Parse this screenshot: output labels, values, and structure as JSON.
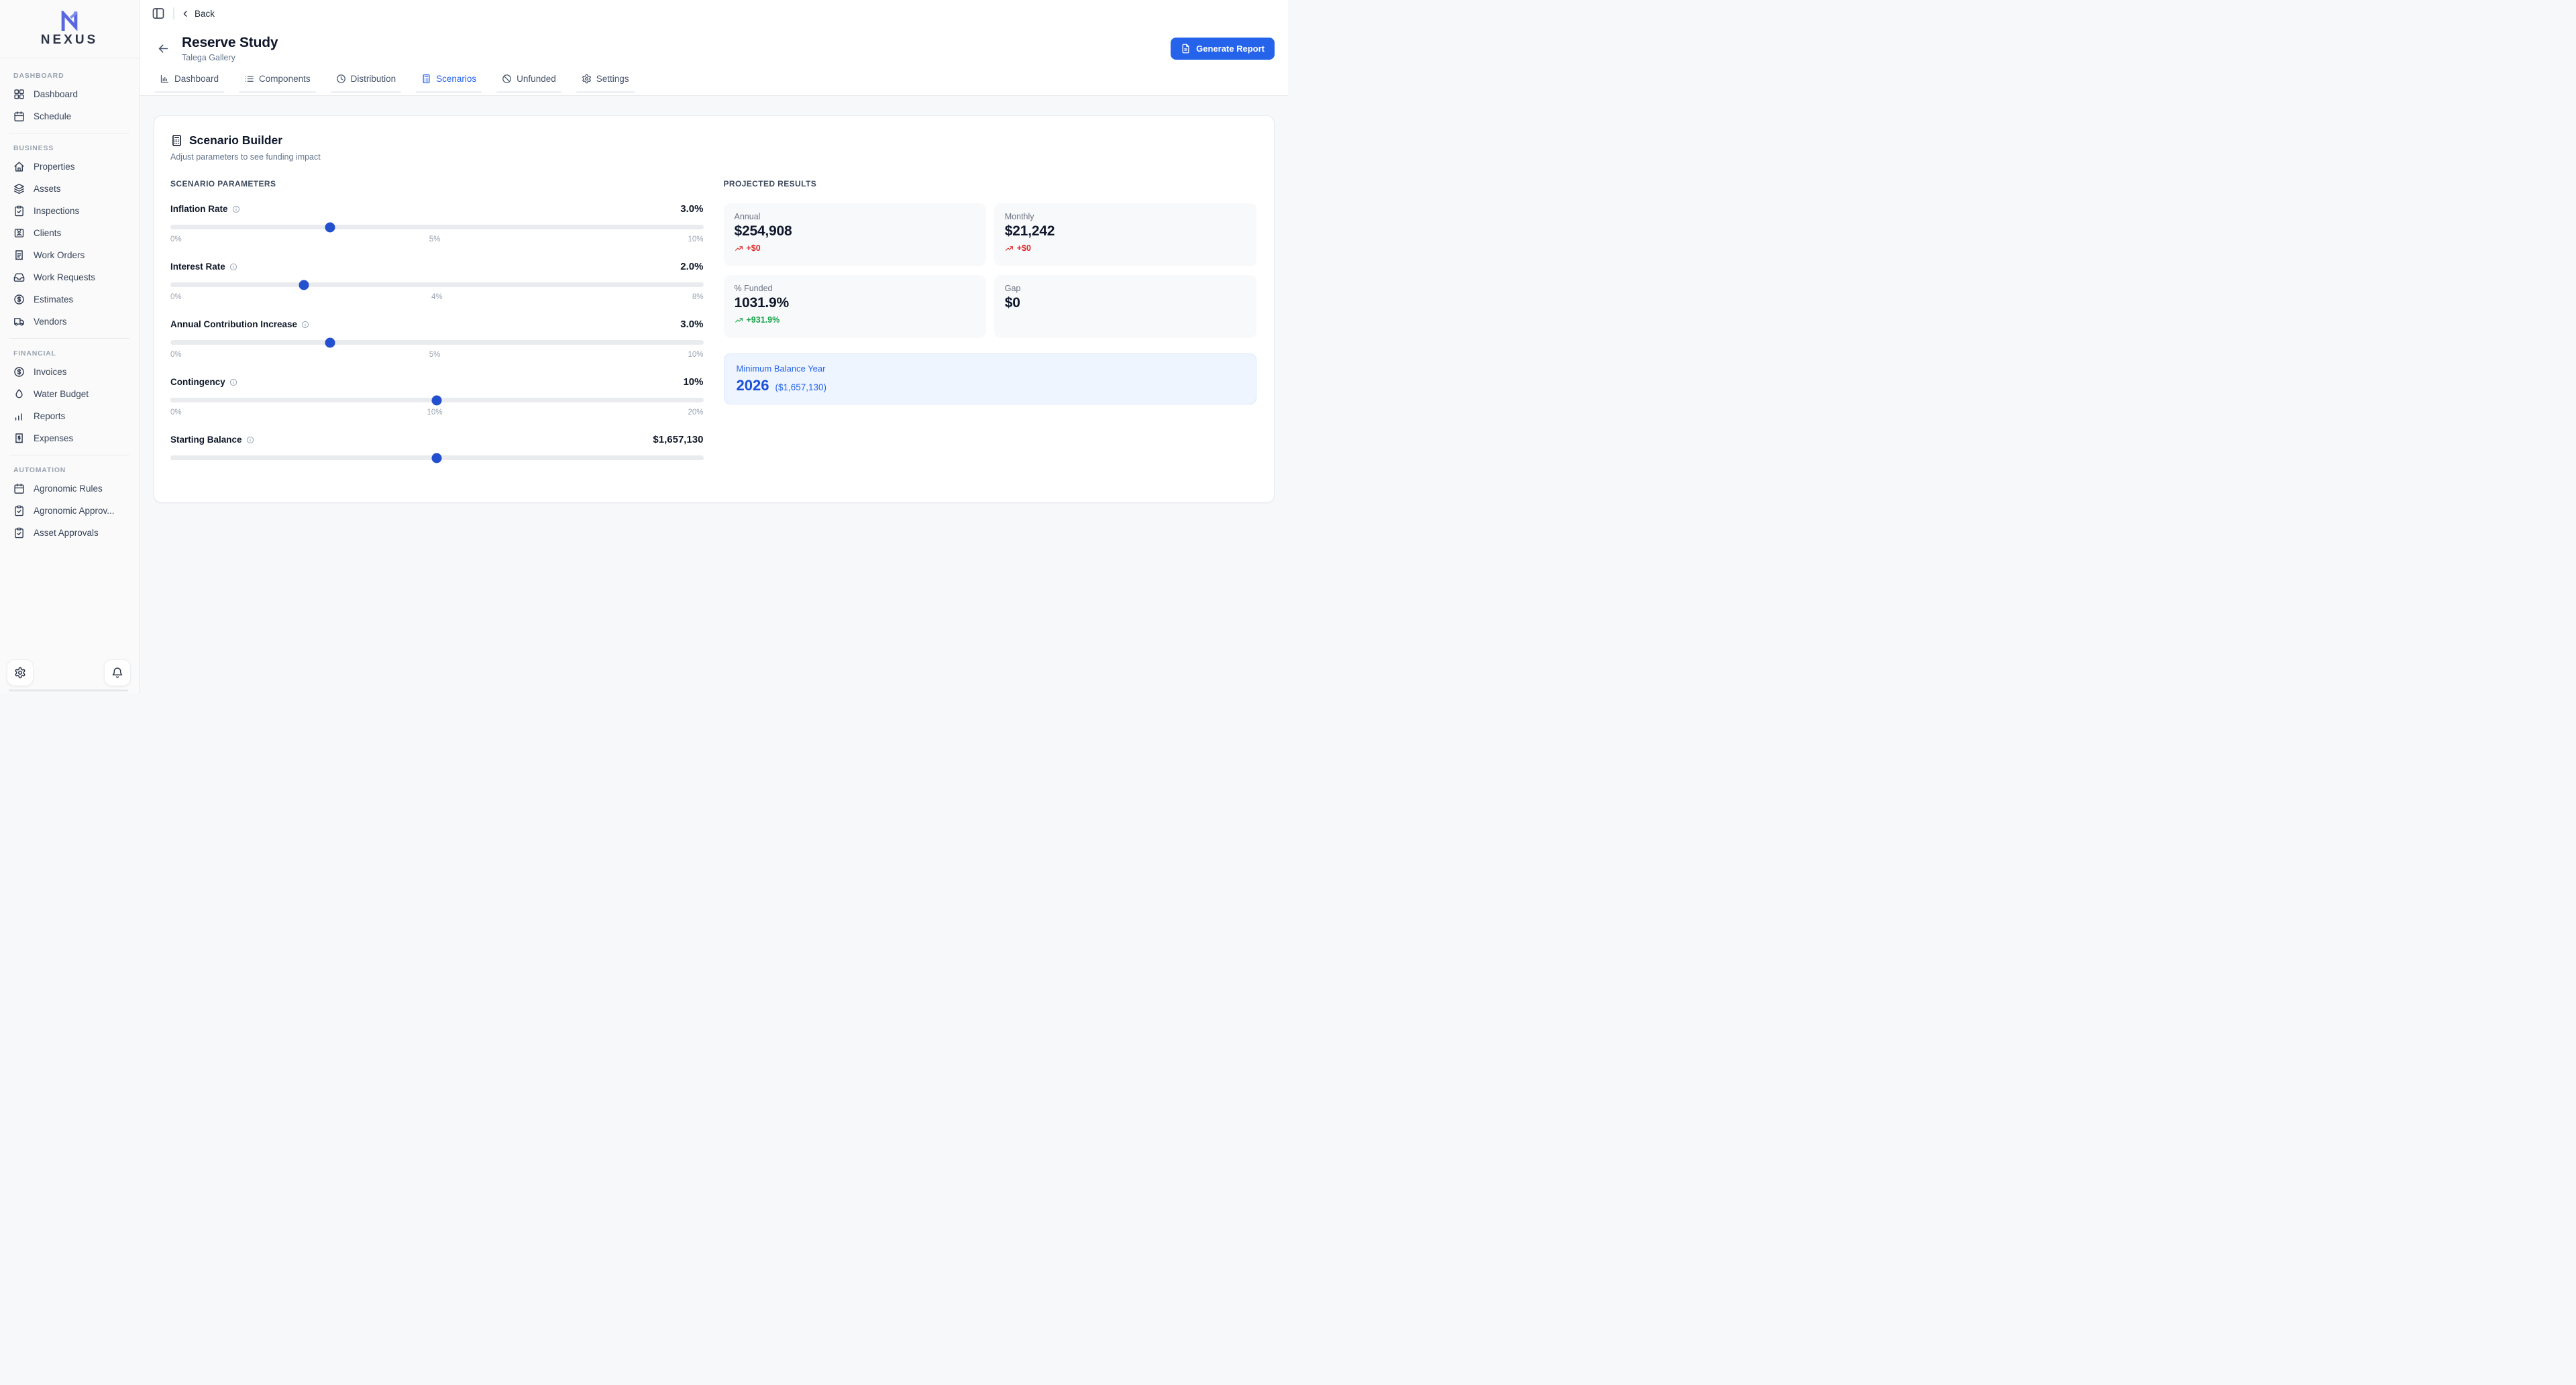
{
  "brand": {
    "name": "NEXUS"
  },
  "sidebar": {
    "sections": [
      {
        "label": "DASHBOARD",
        "items": [
          {
            "label": "Dashboard",
            "icon": "layout-grid-icon"
          },
          {
            "label": "Schedule",
            "icon": "calendar-icon"
          }
        ]
      },
      {
        "label": "BUSINESS",
        "items": [
          {
            "label": "Properties",
            "icon": "home-icon"
          },
          {
            "label": "Assets",
            "icon": "layers-icon"
          },
          {
            "label": "Inspections",
            "icon": "clipboard-check-icon"
          },
          {
            "label": "Clients",
            "icon": "id-card-icon"
          },
          {
            "label": "Work Orders",
            "icon": "receipt-icon"
          },
          {
            "label": "Work Requests",
            "icon": "inbox-icon"
          },
          {
            "label": "Estimates",
            "icon": "dollar-circle-icon"
          },
          {
            "label": "Vendors",
            "icon": "truck-icon"
          }
        ]
      },
      {
        "label": "FINANCIAL",
        "items": [
          {
            "label": "Invoices",
            "icon": "dollar-circle-icon"
          },
          {
            "label": "Water Budget",
            "icon": "droplet-icon"
          },
          {
            "label": "Reports",
            "icon": "bar-chart-icon"
          },
          {
            "label": "Expenses",
            "icon": "receipt-dollar-icon"
          }
        ]
      },
      {
        "label": "AUTOMATION",
        "items": [
          {
            "label": "Agronomic Rules",
            "icon": "calendar-icon"
          },
          {
            "label": "Agronomic Approv...",
            "icon": "clipboard-check-icon"
          },
          {
            "label": "Asset Approvals",
            "icon": "clipboard-check-icon"
          }
        ]
      }
    ]
  },
  "header": {
    "back_label": "Back",
    "title": "Reserve Study",
    "subtitle": "Talega Gallery",
    "generate_report_label": "Generate Report"
  },
  "tabs": [
    {
      "label": "Dashboard",
      "icon": "chart-column-icon",
      "active": false
    },
    {
      "label": "Components",
      "icon": "list-icon",
      "active": false
    },
    {
      "label": "Distribution",
      "icon": "clock-icon",
      "active": false
    },
    {
      "label": "Scenarios",
      "icon": "calculator-icon",
      "active": true
    },
    {
      "label": "Unfunded",
      "icon": "ban-icon",
      "active": false
    },
    {
      "label": "Settings",
      "icon": "gear-icon",
      "active": false
    }
  ],
  "scenario_builder": {
    "title": "Scenario Builder",
    "subtitle": "Adjust parameters to see funding impact",
    "parameters_heading": "SCENARIO PARAMETERS",
    "sliders": [
      {
        "label": "Inflation Rate",
        "value": "3.0%",
        "percent": 30,
        "ticks": [
          "0%",
          "5%",
          "10%"
        ]
      },
      {
        "label": "Interest Rate",
        "value": "2.0%",
        "percent": 25,
        "ticks": [
          "0%",
          "4%",
          "8%"
        ]
      },
      {
        "label": "Annual Contribution Increase",
        "value": "3.0%",
        "percent": 30,
        "ticks": [
          "0%",
          "5%",
          "10%"
        ]
      },
      {
        "label": "Contingency",
        "value": "10%",
        "percent": 50,
        "ticks": [
          "0%",
          "10%",
          "20%"
        ]
      },
      {
        "label": "Starting Balance",
        "value": "$1,657,130",
        "percent": 50,
        "ticks": []
      }
    ]
  },
  "projected_results": {
    "heading": "PROJECTED RESULTS",
    "cards": [
      {
        "label": "Annual",
        "value": "$254,908",
        "delta": "+$0",
        "delta_color": "#dc2626"
      },
      {
        "label": "Monthly",
        "value": "$21,242",
        "delta": "+$0",
        "delta_color": "#dc2626"
      },
      {
        "label": "% Funded",
        "value": "1031.9%",
        "delta": "+931.9%",
        "delta_color": "#16a34a"
      },
      {
        "label": "Gap",
        "value": "$0",
        "delta": null,
        "delta_color": null
      }
    ],
    "min_balance": {
      "label": "Minimum Balance Year",
      "year": "2026",
      "amount": "($1,657,130)"
    }
  },
  "colors": {
    "accent": "#2563eb",
    "negative": "#dc2626",
    "positive": "#16a34a",
    "slider_thumb": "#2350cf",
    "min_card_bg": "#eef5ff",
    "logo_blue": "#5968df"
  }
}
